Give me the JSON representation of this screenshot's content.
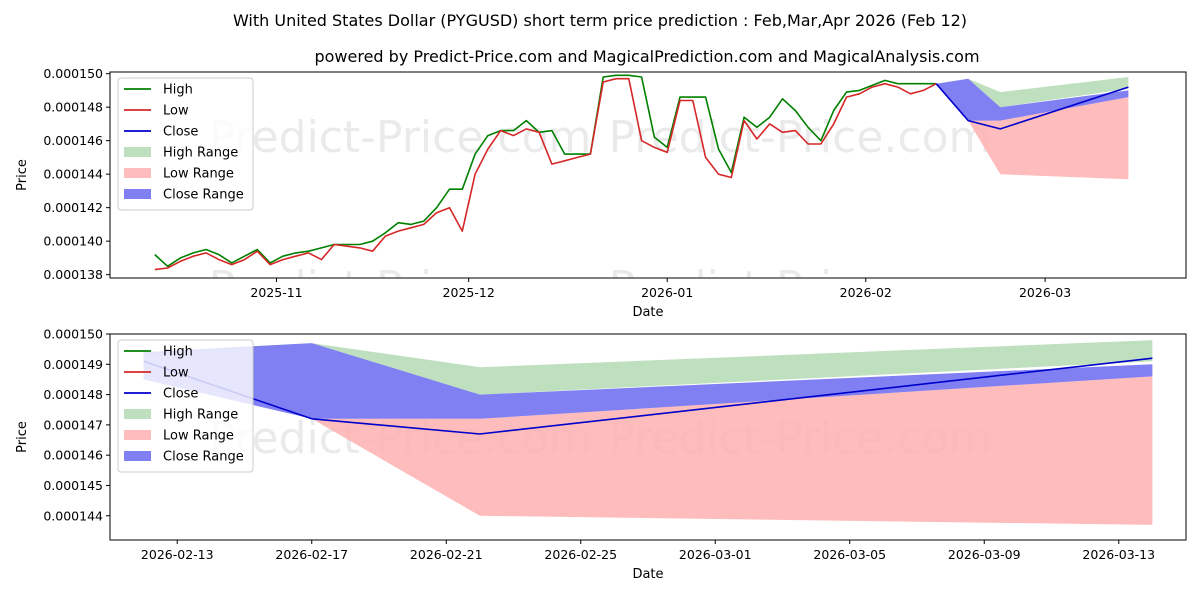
{
  "title": "With United States Dollar (PYGUSD) short term price prediction : Feb,Mar,Apr 2026 (Feb 12)",
  "subtitle": "powered by Predict-Price.com and MagicalPrediction.com and MagicalAnalysis.com",
  "watermark": "Predict-Price.com",
  "colors": {
    "high": "#008000",
    "low": "#d62728",
    "close": "#0000cc",
    "high_range": "#9dcf9d",
    "low_range": "#ffb0b0",
    "close_range": "#6a6af0"
  },
  "legend": [
    "High",
    "Low",
    "Close",
    "High Range",
    "Low Range",
    "Close Range"
  ],
  "chart_data": [
    {
      "type": "line",
      "xlabel": "Date",
      "ylabel": "Price",
      "ylim": [
        0.0001378,
        0.0001501
      ],
      "xlim": [
        "2025-10-06",
        "2026-03-23"
      ],
      "x_ticks": [
        [
          "2025-11-01",
          "2025-11"
        ],
        [
          "2025-12-01",
          "2025-12"
        ],
        [
          "2026-01-01",
          "2026-01"
        ],
        [
          "2026-02-01",
          "2026-02"
        ],
        [
          "2026-03-01",
          "2026-03"
        ]
      ],
      "y_ticks": [
        "0.000138",
        "0.000140",
        "0.000142",
        "0.000144",
        "0.000146",
        "0.000148",
        "0.000150"
      ],
      "history": {
        "dates": [
          "2025-10-13",
          "2025-10-15",
          "2025-10-17",
          "2025-10-19",
          "2025-10-21",
          "2025-10-23",
          "2025-10-25",
          "2025-10-27",
          "2025-10-29",
          "2025-10-31",
          "2025-11-02",
          "2025-11-04",
          "2025-11-06",
          "2025-11-08",
          "2025-11-10",
          "2025-11-12",
          "2025-11-14",
          "2025-11-16",
          "2025-11-18",
          "2025-11-20",
          "2025-11-22",
          "2025-11-24",
          "2025-11-26",
          "2025-11-28",
          "2025-11-30",
          "2025-12-02",
          "2025-12-04",
          "2025-12-06",
          "2025-12-08",
          "2025-12-10",
          "2025-12-12",
          "2025-12-14",
          "2025-12-16",
          "2025-12-18",
          "2025-12-20",
          "2025-12-22",
          "2025-12-24",
          "2025-12-26",
          "2025-12-28",
          "2025-12-30",
          "2026-01-01",
          "2026-01-03",
          "2026-01-05",
          "2026-01-07",
          "2026-01-09",
          "2026-01-11",
          "2026-01-13",
          "2026-01-15",
          "2026-01-17",
          "2026-01-19",
          "2026-01-21",
          "2026-01-23",
          "2026-01-25",
          "2026-01-27",
          "2026-01-29",
          "2026-01-31",
          "2026-02-02",
          "2026-02-04",
          "2026-02-06",
          "2026-02-08",
          "2026-02-10",
          "2026-02-12"
        ],
        "high": [
          0.0001392,
          0.0001385,
          0.000139,
          0.0001393,
          0.0001395,
          0.0001392,
          0.0001387,
          0.0001391,
          0.0001395,
          0.0001387,
          0.0001391,
          0.0001393,
          0.0001394,
          0.0001396,
          0.0001398,
          0.0001398,
          0.0001398,
          0.00014,
          0.0001405,
          0.0001411,
          0.000141,
          0.0001412,
          0.000142,
          0.0001431,
          0.0001431,
          0.0001452,
          0.0001463,
          0.0001466,
          0.0001466,
          0.0001472,
          0.0001465,
          0.0001466,
          0.0001452,
          0.0001452,
          0.0001452,
          0.0001498,
          0.0001499,
          0.0001499,
          0.0001498,
          0.0001462,
          0.0001456,
          0.0001486,
          0.0001486,
          0.0001486,
          0.0001455,
          0.0001441,
          0.0001474,
          0.0001468,
          0.0001474,
          0.0001485,
          0.0001478,
          0.0001468,
          0.000146,
          0.0001478,
          0.0001489,
          0.000149,
          0.0001493,
          0.0001496,
          0.0001494,
          0.0001494,
          0.0001494,
          0.0001494
        ],
        "low": [
          0.0001383,
          0.0001384,
          0.0001388,
          0.0001391,
          0.0001393,
          0.0001389,
          0.0001386,
          0.0001389,
          0.0001394,
          0.0001386,
          0.0001389,
          0.0001391,
          0.0001393,
          0.0001389,
          0.0001398,
          0.0001397,
          0.0001396,
          0.0001394,
          0.0001403,
          0.0001406,
          0.0001408,
          0.000141,
          0.0001417,
          0.000142,
          0.0001406,
          0.000144,
          0.0001455,
          0.0001466,
          0.0001463,
          0.0001467,
          0.0001465,
          0.0001446,
          0.0001448,
          0.000145,
          0.0001452,
          0.0001495,
          0.0001497,
          0.0001497,
          0.000146,
          0.0001456,
          0.0001453,
          0.0001484,
          0.0001484,
          0.000145,
          0.000144,
          0.0001438,
          0.0001472,
          0.0001461,
          0.000147,
          0.0001465,
          0.0001466,
          0.0001458,
          0.0001458,
          0.000147,
          0.0001486,
          0.0001488,
          0.0001492,
          0.0001494,
          0.0001492,
          0.0001488,
          0.000149,
          0.0001494
        ]
      },
      "forecast": {
        "dates": [
          "2026-02-12",
          "2026-02-17",
          "2026-02-22",
          "2026-03-14"
        ],
        "close": [
          0.0001494,
          0.0001472,
          0.0001467,
          0.0001492
        ],
        "high_range_upper": [
          0.0001494,
          0.0001497,
          0.0001489,
          0.0001498
        ],
        "high_range_lower": [
          0.0001494,
          0.0001497,
          0.000148,
          0.0001491
        ],
        "low_range_upper": [
          0.0001494,
          0.0001472,
          0.0001472,
          0.0001486
        ],
        "low_range_lower": [
          0.0001494,
          0.0001472,
          0.000144,
          0.0001437
        ],
        "close_range_upper": [
          0.0001494,
          0.0001497,
          0.000148,
          0.000149
        ],
        "close_range_lower": [
          0.0001494,
          0.0001472,
          0.0001472,
          0.0001486
        ]
      }
    },
    {
      "type": "line",
      "xlabel": "Date",
      "ylabel": "Price",
      "ylim": [
        0.0001432,
        0.00015
      ],
      "xlim": [
        "2026-02-11",
        "2026-03-15"
      ],
      "x_ticks": [
        [
          "2026-02-13",
          "2026-02-13"
        ],
        [
          "2026-02-17",
          "2026-02-17"
        ],
        [
          "2026-02-21",
          "2026-02-21"
        ],
        [
          "2026-02-25",
          "2026-02-25"
        ],
        [
          "2026-03-01",
          "2026-03-01"
        ],
        [
          "2026-03-05",
          "2026-03-05"
        ],
        [
          "2026-03-09",
          "2026-03-09"
        ],
        [
          "2026-03-13",
          "2026-03-13"
        ]
      ],
      "y_ticks": [
        "0.000144",
        "0.000145",
        "0.000146",
        "0.000147",
        "0.000148",
        "0.000149",
        "0.000150"
      ],
      "forecast": {
        "dates": [
          "2026-02-12",
          "2026-02-17",
          "2026-02-22",
          "2026-03-14"
        ],
        "close": [
          0.0001491,
          0.0001472,
          0.0001467,
          0.0001492
        ],
        "high_range_upper": [
          0.0001494,
          0.0001497,
          0.0001489,
          0.0001498
        ],
        "high_range_lower": [
          0.0001493,
          0.0001497,
          0.000148,
          0.0001491
        ],
        "low_range_upper": [
          0.0001482,
          0.0001472,
          0.0001472,
          0.0001486
        ],
        "low_range_lower": [
          0.0001482,
          0.0001472,
          0.000144,
          0.0001437
        ],
        "close_range_upper": [
          0.0001494,
          0.0001497,
          0.000148,
          0.000149
        ],
        "close_range_lower": [
          0.0001485,
          0.0001472,
          0.0001472,
          0.0001486
        ]
      }
    }
  ]
}
